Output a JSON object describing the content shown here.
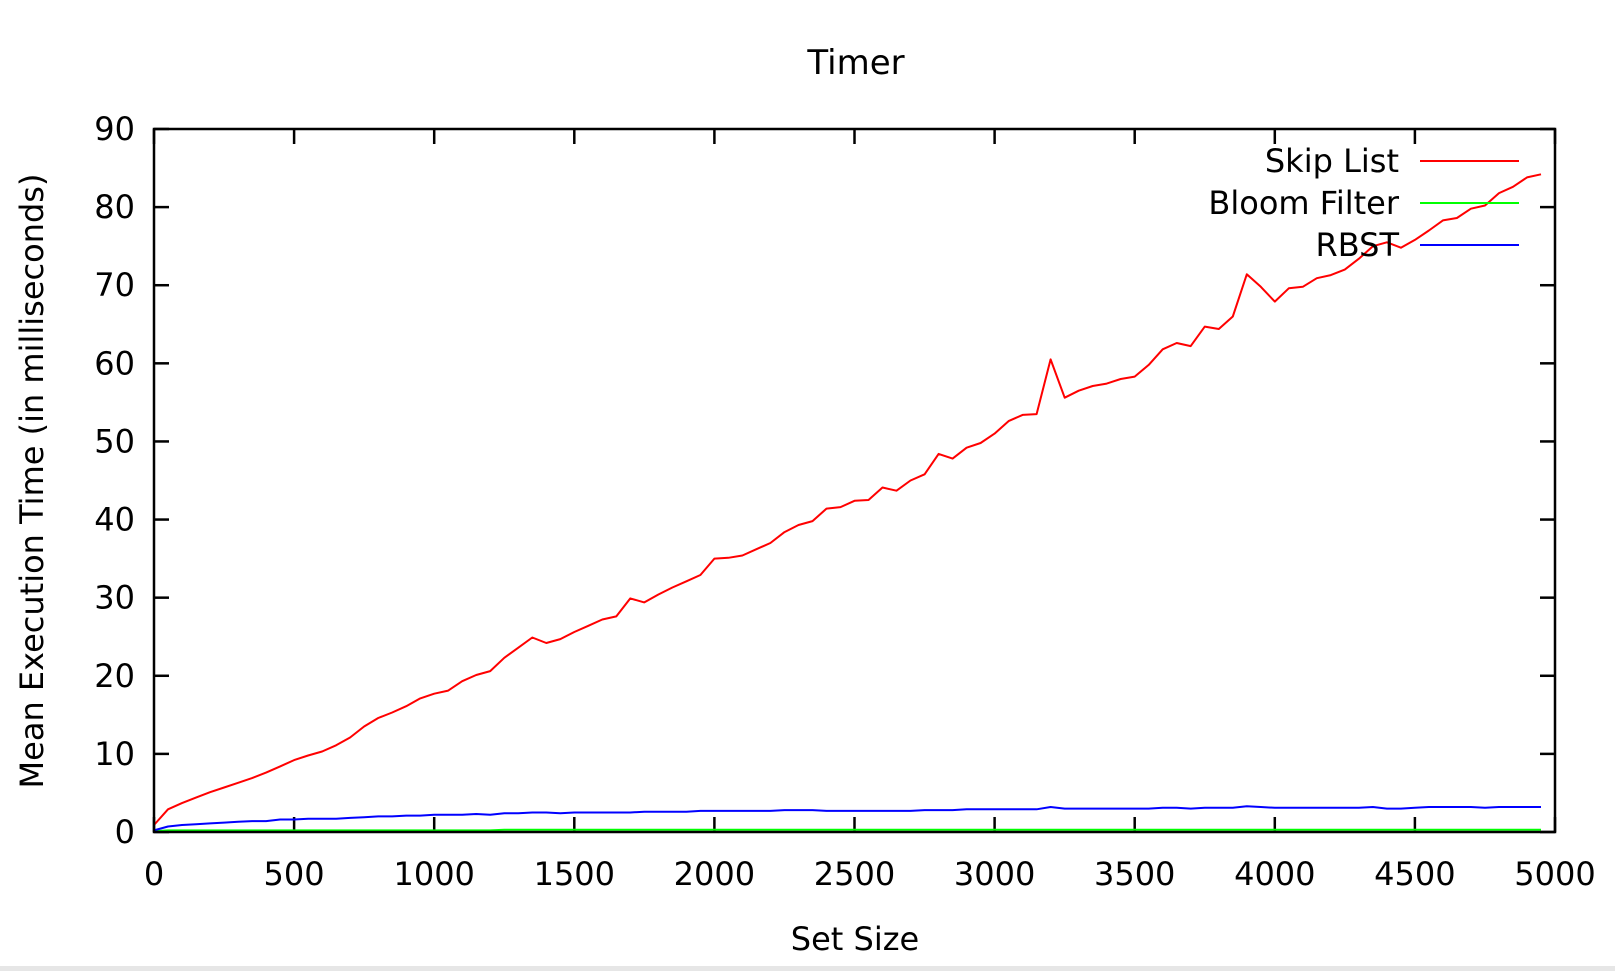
{
  "chart_data": {
    "type": "line",
    "title": "Timer",
    "xlabel": "Set Size",
    "ylabel": "Mean Execution Time (in milliseconds)",
    "xlim": [
      0,
      5000
    ],
    "ylim": [
      0,
      90
    ],
    "xticks": [
      0,
      500,
      1000,
      1500,
      2000,
      2500,
      3000,
      3500,
      4000,
      4500,
      5000
    ],
    "yticks": [
      0,
      10,
      20,
      30,
      40,
      50,
      60,
      70,
      80,
      90
    ],
    "grid": false,
    "legend_position": "top-right",
    "x": [
      0,
      50,
      100,
      150,
      200,
      250,
      300,
      350,
      400,
      450,
      500,
      550,
      600,
      650,
      700,
      750,
      800,
      850,
      900,
      950,
      1000,
      1050,
      1100,
      1150,
      1200,
      1250,
      1300,
      1350,
      1400,
      1450,
      1500,
      1550,
      1600,
      1650,
      1700,
      1750,
      1800,
      1850,
      1900,
      1950,
      2000,
      2050,
      2100,
      2150,
      2200,
      2250,
      2300,
      2350,
      2400,
      2450,
      2500,
      2550,
      2600,
      2650,
      2700,
      2750,
      2800,
      2850,
      2900,
      2950,
      3000,
      3050,
      3100,
      3150,
      3200,
      3250,
      3300,
      3350,
      3400,
      3450,
      3500,
      3550,
      3600,
      3650,
      3700,
      3750,
      3800,
      3850,
      3900,
      3950,
      4000,
      4050,
      4100,
      4150,
      4200,
      4250,
      4300,
      4350,
      4400,
      4450,
      4500,
      4550,
      4600,
      4650,
      4700,
      4750,
      4800,
      4850,
      4900,
      4950
    ],
    "series": [
      {
        "name": "Skip List",
        "color": "#ff0000",
        "values": [
          0.9,
          2.9,
          3.7,
          4.4,
          5.1,
          5.7,
          6.3,
          6.9,
          7.6,
          8.4,
          9.2,
          9.8,
          10.3,
          11.1,
          12.1,
          13.5,
          14.6,
          15.3,
          16.1,
          17.1,
          17.7,
          18.1,
          19.3,
          20.1,
          20.6,
          22.3,
          23.6,
          24.9,
          24.2,
          24.7,
          25.6,
          26.4,
          27.2,
          27.6,
          29.9,
          29.4,
          30.4,
          31.3,
          32.1,
          32.9,
          35.0,
          35.1,
          35.4,
          36.2,
          37.0,
          38.4,
          39.3,
          39.8,
          41.4,
          41.6,
          42.4,
          42.5,
          44.1,
          43.7,
          45.0,
          45.8,
          48.4,
          47.8,
          49.2,
          49.8,
          51.0,
          52.6,
          53.4,
          53.5,
          60.5,
          55.6,
          56.5,
          57.1,
          57.4,
          58.0,
          58.3,
          59.8,
          61.8,
          62.6,
          62.2,
          64.7,
          64.4,
          66.0,
          71.4,
          69.8,
          67.9,
          69.6,
          69.8,
          70.9,
          71.3,
          72.0,
          73.4,
          75.0,
          75.5,
          74.8,
          75.8,
          77.0,
          78.3,
          78.6,
          79.8,
          80.2,
          81.8,
          82.6,
          83.8,
          84.2
        ]
      },
      {
        "name": "Bloom Filter",
        "color": "#00ff00",
        "values": [
          0.1,
          0.2,
          0.2,
          0.2,
          0.2,
          0.2,
          0.2,
          0.2,
          0.2,
          0.2,
          0.2,
          0.2,
          0.2,
          0.2,
          0.2,
          0.2,
          0.2,
          0.2,
          0.2,
          0.2,
          0.2,
          0.2,
          0.2,
          0.2,
          0.2,
          0.3,
          0.3,
          0.3,
          0.3,
          0.3,
          0.3,
          0.3,
          0.3,
          0.3,
          0.3,
          0.3,
          0.3,
          0.3,
          0.3,
          0.3,
          0.3,
          0.3,
          0.3,
          0.3,
          0.3,
          0.3,
          0.3,
          0.3,
          0.3,
          0.3,
          0.3,
          0.3,
          0.3,
          0.3,
          0.3,
          0.3,
          0.3,
          0.3,
          0.3,
          0.3,
          0.3,
          0.3,
          0.3,
          0.3,
          0.3,
          0.3,
          0.3,
          0.3,
          0.3,
          0.3,
          0.3,
          0.3,
          0.3,
          0.3,
          0.3,
          0.3,
          0.3,
          0.3,
          0.3,
          0.3,
          0.3,
          0.3,
          0.3,
          0.3,
          0.3,
          0.3,
          0.3,
          0.3,
          0.3,
          0.3,
          0.3,
          0.3,
          0.3,
          0.3,
          0.3,
          0.3,
          0.3,
          0.3,
          0.3,
          0.3
        ]
      },
      {
        "name": "RBST",
        "color": "#0000ff",
        "values": [
          0.2,
          0.7,
          0.9,
          1.0,
          1.1,
          1.2,
          1.3,
          1.4,
          1.4,
          1.6,
          1.6,
          1.7,
          1.7,
          1.7,
          1.8,
          1.9,
          2.0,
          2.0,
          2.1,
          2.1,
          2.2,
          2.2,
          2.2,
          2.3,
          2.2,
          2.4,
          2.4,
          2.5,
          2.5,
          2.4,
          2.5,
          2.5,
          2.5,
          2.5,
          2.5,
          2.6,
          2.6,
          2.6,
          2.6,
          2.7,
          2.7,
          2.7,
          2.7,
          2.7,
          2.7,
          2.8,
          2.8,
          2.8,
          2.7,
          2.7,
          2.7,
          2.7,
          2.7,
          2.7,
          2.7,
          2.8,
          2.8,
          2.8,
          2.9,
          2.9,
          2.9,
          2.9,
          2.9,
          2.9,
          3.2,
          3.0,
          3.0,
          3.0,
          3.0,
          3.0,
          3.0,
          3.0,
          3.1,
          3.1,
          3.0,
          3.1,
          3.1,
          3.1,
          3.3,
          3.2,
          3.1,
          3.1,
          3.1,
          3.1,
          3.1,
          3.1,
          3.1,
          3.2,
          3.0,
          3.0,
          3.1,
          3.2,
          3.2,
          3.2,
          3.2,
          3.1,
          3.2,
          3.2,
          3.2,
          3.2
        ]
      }
    ]
  }
}
